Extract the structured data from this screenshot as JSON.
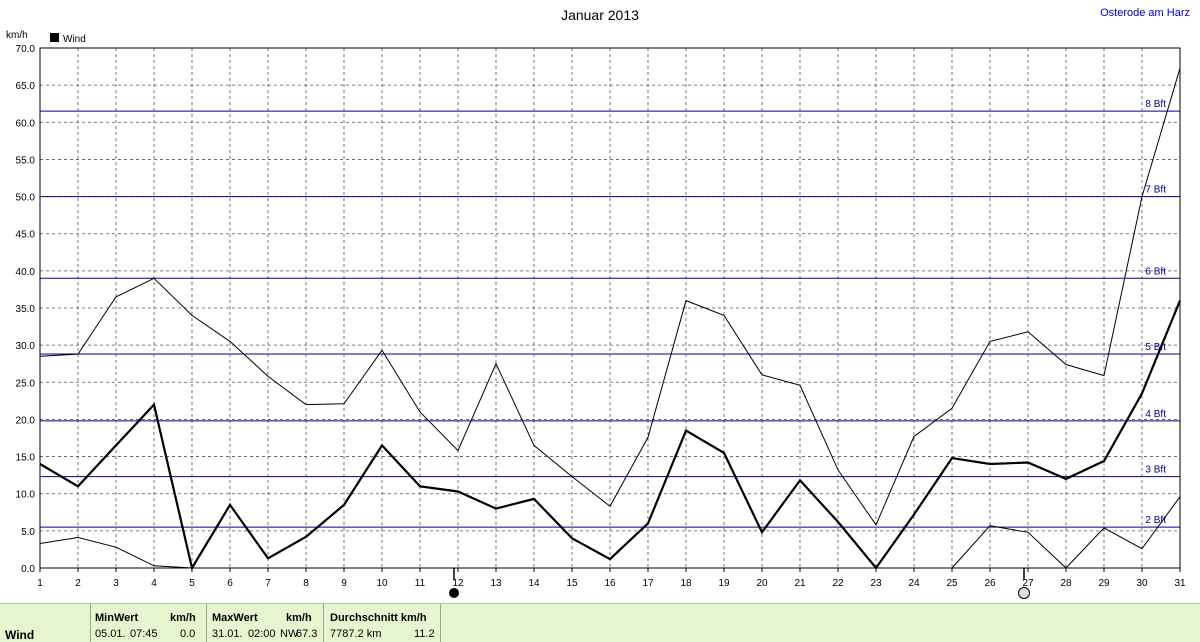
{
  "chart_data": {
    "type": "line",
    "title": "Januar 2013",
    "location": "Osterode am Harz",
    "ylabel": "km/h",
    "ylim": [
      0,
      70
    ],
    "yticks": [
      "0.0",
      "5.0",
      "10.0",
      "15.0",
      "20.0",
      "25.0",
      "30.0",
      "35.0",
      "40.0",
      "45.0",
      "50.0",
      "55.0",
      "60.0",
      "65.0",
      "70.0"
    ],
    "x": [
      1,
      2,
      3,
      4,
      5,
      6,
      7,
      8,
      9,
      10,
      11,
      12,
      13,
      14,
      15,
      16,
      17,
      18,
      19,
      20,
      21,
      22,
      23,
      24,
      25,
      26,
      27,
      28,
      29,
      30,
      31
    ],
    "legend": "Wind",
    "grid": true,
    "series": [
      {
        "name": "Wind",
        "width": 2.2,
        "values": [
          14.0,
          11.0,
          16.5,
          22.0,
          0.0,
          8.5,
          1.3,
          4.2,
          8.5,
          16.5,
          11.0,
          10.3,
          8.0,
          9.3,
          4.0,
          1.2,
          6.0,
          18.5,
          15.5,
          4.8,
          11.8,
          6.2,
          0.0,
          7.2,
          14.8,
          14.0,
          14.2,
          12.0,
          14.4,
          23.5,
          36.0
        ]
      },
      {
        "width": 1,
        "values": [
          28.5,
          28.8,
          36.5,
          39.0,
          34.0,
          30.5,
          25.8,
          22.0,
          22.1,
          29.3,
          21.0,
          15.8,
          27.5,
          16.5,
          12.3,
          8.3,
          17.6,
          36.0,
          34.0,
          26.0,
          24.6,
          13.2,
          5.8,
          17.7,
          21.5,
          30.5,
          31.8,
          27.4,
          25.9,
          50.0,
          67.3
        ]
      },
      {
        "width": 1,
        "values": [
          3.3,
          4.1,
          2.8,
          0.3,
          0.0,
          0.0,
          0.0,
          null,
          null,
          0.0,
          0.0,
          null,
          null,
          null,
          null,
          null,
          null,
          null,
          null,
          null,
          null,
          null,
          null,
          null,
          0.0,
          5.7,
          4.8,
          0.0,
          5.4,
          2.6,
          9.6
        ]
      }
    ],
    "beaufort": [
      {
        "label": "2 Bft",
        "kmh": 5.5
      },
      {
        "label": "3 Bft",
        "kmh": 12.3
      },
      {
        "label": "4 Bft",
        "kmh": 19.8
      },
      {
        "label": "5 Bft",
        "kmh": 28.8
      },
      {
        "label": "6 Bft",
        "kmh": 39.0
      },
      {
        "label": "7 Bft",
        "kmh": 50.0
      },
      {
        "label": "8 Bft",
        "kmh": 61.5
      }
    ],
    "moon_phases": [
      {
        "day": 12,
        "phase": "new"
      },
      {
        "day": 27,
        "phase": "full"
      }
    ]
  },
  "stats": {
    "row_label": "Wind",
    "min_header": "MinWert",
    "unit_header": "km/h",
    "min_date": "05.01.",
    "min_time": "07:45",
    "min_value": "0.0",
    "max_header": "MaxWert",
    "max_date": "31.01.",
    "max_time": "02:00",
    "max_dir": "NW",
    "max_value": "67.3",
    "avg_header": "Durchschnitt km/h",
    "avg_distance": "7787.2 km",
    "avg_value": "11.2"
  },
  "colors": {
    "beaufort_line": "#00008b",
    "grid": "#555555",
    "series": "#000000",
    "stats_bg": "#e6f5d0"
  }
}
